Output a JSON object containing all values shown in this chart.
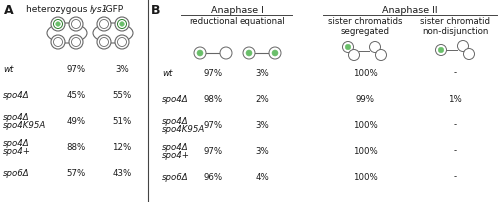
{
  "panel_A": {
    "label": "A",
    "rows": [
      {
        "strain": "wt",
        "v1": "97%",
        "v2": "3%"
      },
      {
        "strain": "spo4Δ",
        "v1": "45%",
        "v2": "55%"
      },
      {
        "strain": "spo4Δ\nspo4K95A",
        "v1": "49%",
        "v2": "51%"
      },
      {
        "strain": "spo4Δ\nspo4+",
        "v1": "88%",
        "v2": "12%"
      },
      {
        "strain": "spo6Δ",
        "v1": "57%",
        "v2": "43%"
      }
    ]
  },
  "panel_B": {
    "label": "B",
    "anaphase1_header": "Anaphase I",
    "anaphase2_header": "Anaphase II",
    "col_headers": [
      "reductional",
      "equational",
      "sister chromatids\nsegregated",
      "sister chromatid\nnon-disjunction"
    ],
    "rows": [
      {
        "strain": "wt",
        "c1": "97%",
        "c2": "3%",
        "c3": "100%",
        "c4": "-"
      },
      {
        "strain": "spo4Δ",
        "c1": "98%",
        "c2": "2%",
        "c3": "99%",
        "c4": "1%"
      },
      {
        "strain": "spo4Δ\nspo4K95A",
        "c1": "97%",
        "c2": "3%",
        "c3": "100%",
        "c4": "-"
      },
      {
        "strain": "spo4Δ\nspo4+",
        "c1": "97%",
        "c2": "3%",
        "c3": "100%",
        "c4": "-"
      },
      {
        "strain": "spo6Δ",
        "c1": "96%",
        "c2": "4%",
        "c3": "100%",
        "c4": "-"
      }
    ]
  },
  "bg_color": "#ffffff",
  "text_color": "#1a1a1a",
  "green_fill": "#6abf6a",
  "green_edge": "#2e7d2e",
  "circle_edge": "#666666",
  "line_color": "#666666",
  "divider_color": "#444444",
  "fontsize": 6.2,
  "header_fontsize": 6.8,
  "label_fontsize": 9
}
